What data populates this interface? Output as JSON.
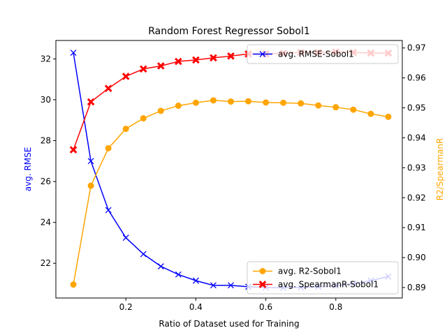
{
  "chart_data": {
    "type": "line",
    "title": "Random Forest Regressor Sobol1",
    "xlabel": "Ratio of Dataset used for Training",
    "ylabel": "avg. RMSE",
    "ylabel_right": "R2/SpearmanR",
    "xlim": [
      0.0,
      0.99
    ],
    "ylim": [
      20.3,
      32.9
    ],
    "ylim_right": [
      0.8865,
      0.9725
    ],
    "x_ticks": [
      0.2,
      0.4,
      0.6,
      0.8
    ],
    "x_tick_labels": [
      "0.2",
      "0.4",
      "0.6",
      "0.8"
    ],
    "y_ticks": [
      22,
      24,
      26,
      28,
      30,
      32
    ],
    "y_tick_labels": [
      "22",
      "24",
      "26",
      "28",
      "30",
      "32"
    ],
    "y_ticks_right": [
      0.89,
      0.9,
      0.91,
      0.92,
      0.93,
      0.94,
      0.95,
      0.96,
      0.97
    ],
    "y_tick_labels_right": [
      "0.89",
      "0.90",
      "0.91",
      "0.92",
      "0.93",
      "0.94",
      "0.95",
      "0.96",
      "0.97"
    ],
    "x": [
      0.05,
      0.1,
      0.15,
      0.2,
      0.25,
      0.3,
      0.35,
      0.4,
      0.45,
      0.5,
      0.55,
      0.6,
      0.65,
      0.7,
      0.75,
      0.8,
      0.85,
      0.9,
      0.95
    ],
    "series": [
      {
        "name": "avg. RMSE-Sobol1",
        "axis": "left",
        "color": "#0000ff",
        "marker": "x",
        "values": [
          32.3,
          27.0,
          24.6,
          23.25,
          22.45,
          21.85,
          21.45,
          21.15,
          20.92,
          20.92,
          20.85,
          20.82,
          20.8,
          20.82,
          20.85,
          20.9,
          21.0,
          21.15,
          21.35
        ]
      },
      {
        "name": "avg. R2-Sobol1",
        "axis": "right",
        "color": "#ffa500",
        "marker": "o",
        "values": [
          0.891,
          0.924,
          0.9365,
          0.943,
          0.9465,
          0.949,
          0.9507,
          0.9517,
          0.9525,
          0.9521,
          0.9522,
          0.9518,
          0.9517,
          0.9515,
          0.9508,
          0.9502,
          0.9494,
          0.948,
          0.947
        ]
      },
      {
        "name": "avg. SpearmanR-Sobol1",
        "axis": "right",
        "color": "#ff0000",
        "marker": "X",
        "values": [
          0.936,
          0.952,
          0.9565,
          0.9605,
          0.963,
          0.964,
          0.9655,
          0.966,
          0.9667,
          0.9673,
          0.968,
          0.968,
          0.9682,
          0.9685,
          0.9685,
          0.9687,
          0.9685,
          0.9683,
          0.9683
        ]
      }
    ],
    "legend_upper": {
      "position": "top-right",
      "entries": [
        "avg. RMSE-Sobol1"
      ]
    },
    "legend_lower": {
      "position": "bottom-right",
      "entries": [
        "avg. R2-Sobol1",
        "avg. SpearmanR-Sobol1"
      ]
    },
    "colors": {
      "left_axis_label": "#0000ff",
      "right_axis_label": "#ffa500",
      "frame": "#000000"
    }
  }
}
